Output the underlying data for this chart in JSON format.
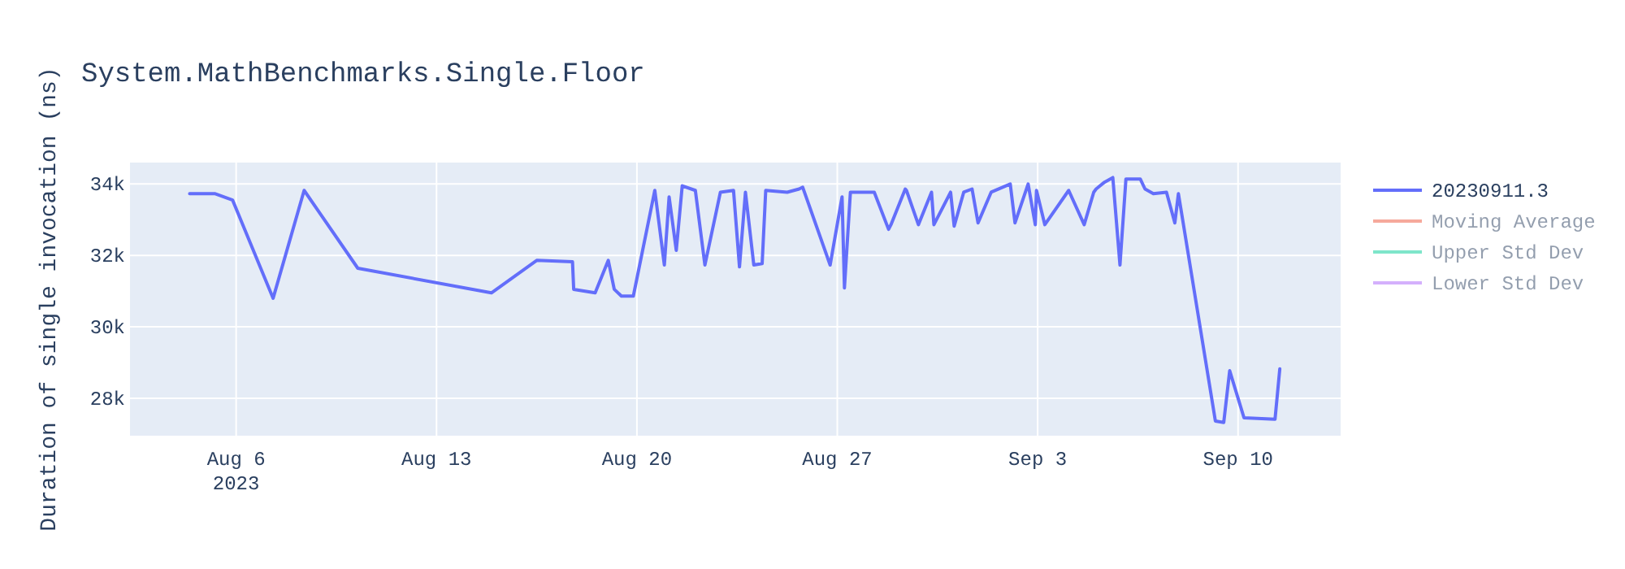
{
  "chart_data": {
    "type": "line",
    "title": "System.MathBenchmarks.Single.Floor",
    "ylabel": "Duration of single invocation (ns)",
    "x": [
      "2023-08-04T09:00",
      "2023-08-05T06:00",
      "2023-08-05T21:00",
      "2023-08-07T07:00",
      "2023-08-08T09:00",
      "2023-08-10T06:00",
      "2023-08-14T22:00",
      "2023-08-16T12:00",
      "2023-08-17T18:00",
      "2023-08-17T19:00",
      "2023-08-18T13:00",
      "2023-08-19T00:00",
      "2023-08-19T05:00",
      "2023-08-19T11:00",
      "2023-08-19T21:00",
      "2023-08-20T15:00",
      "2023-08-20T23:00",
      "2023-08-21T03:00",
      "2023-08-21T09:00",
      "2023-08-21T14:00",
      "2023-08-22T01:00",
      "2023-08-22T09:00",
      "2023-08-22T22:00",
      "2023-08-23T09:00",
      "2023-08-23T14:00",
      "2023-08-23T19:00",
      "2023-08-24T02:00",
      "2023-08-24T09:00",
      "2023-08-24T12:00",
      "2023-08-25T06:00",
      "2023-08-25T16:00",
      "2023-08-25T19:00",
      "2023-08-26T18:00",
      "2023-08-27T04:00",
      "2023-08-27T06:00",
      "2023-08-27T11:00",
      "2023-08-28T07:00",
      "2023-08-28T19:00",
      "2023-08-28T21:00",
      "2023-08-29T09:00",
      "2023-08-29T10:00",
      "2023-08-29T20:00",
      "2023-08-30T07:00",
      "2023-08-30T09:00",
      "2023-08-30T23:00",
      "2023-08-31T02:00",
      "2023-08-31T10:00",
      "2023-08-31T17:00",
      "2023-08-31T22:00",
      "2023-09-01T09:00",
      "2023-09-02T01:00",
      "2023-09-02T05:00",
      "2023-09-02T16:00",
      "2023-09-02T22:00",
      "2023-09-02T23:00",
      "2023-09-03T06:00",
      "2023-09-04T02:00",
      "2023-09-04T15:00",
      "2023-09-04T23:00",
      "2023-09-05T01:00",
      "2023-09-05T08:00",
      "2023-09-05T15:00",
      "2023-09-05T21:00",
      "2023-09-06T02:00",
      "2023-09-06T14:00",
      "2023-09-06T18:00",
      "2023-09-07T01:00",
      "2023-09-07T12:00",
      "2023-09-07T19:00",
      "2023-09-07T22:00",
      "2023-09-09T05:00",
      "2023-09-09T12:00",
      "2023-09-09T17:00",
      "2023-09-10T05:00",
      "2023-09-11T07:00",
      "2023-09-11T11:00"
    ],
    "series": [
      {
        "name": "20230911.3",
        "color": "#636efa",
        "values": [
          33730,
          33730,
          33550,
          30800,
          33820,
          31640,
          30950,
          31860,
          31820,
          31050,
          30950,
          31860,
          31050,
          30860,
          30860,
          33820,
          31730,
          33640,
          32140,
          33950,
          33820,
          31730,
          33770,
          33820,
          31680,
          33770,
          31730,
          31770,
          33820,
          33770,
          33860,
          33910,
          31730,
          33640,
          31090,
          33770,
          33770,
          32730,
          32860,
          33860,
          33820,
          32860,
          33770,
          32860,
          33770,
          32820,
          33770,
          33860,
          32910,
          33770,
          34000,
          32910,
          34000,
          32860,
          33820,
          32860,
          33820,
          32860,
          33770,
          33860,
          34050,
          34180,
          31730,
          34140,
          34140,
          33860,
          33730,
          33770,
          32910,
          33730,
          27360,
          27320,
          28770,
          27450,
          27410,
          28820
        ]
      },
      {
        "name": "Moving Average",
        "color": "#ef553b",
        "values": [
          null,
          null,
          null,
          null,
          null,
          null,
          null,
          null,
          null,
          null,
          null,
          null,
          null,
          null,
          null,
          null,
          null,
          null,
          null,
          null,
          null,
          null,
          null,
          null,
          null,
          null,
          null,
          null,
          null,
          null,
          null,
          null,
          null,
          null,
          null,
          null,
          null,
          null,
          null,
          null,
          null,
          null,
          null,
          null,
          null,
          null,
          null,
          null,
          null,
          null,
          null,
          null,
          null,
          null,
          null,
          null,
          null,
          null,
          null,
          null,
          null,
          null,
          null,
          null,
          null,
          null,
          null,
          null,
          null,
          null,
          null,
          null,
          null,
          null,
          null,
          null
        ]
      },
      {
        "name": "Upper Std Dev",
        "color": "#00cc96",
        "values": [
          null,
          null,
          null,
          null,
          null,
          null,
          null,
          null,
          null,
          null,
          null,
          null,
          null,
          null,
          null,
          null,
          null,
          null,
          null,
          null,
          null,
          null,
          null,
          null,
          null,
          null,
          null,
          null,
          null,
          null,
          null,
          null,
          null,
          null,
          null,
          null,
          null,
          null,
          null,
          null,
          null,
          null,
          null,
          null,
          null,
          null,
          null,
          null,
          null,
          null,
          null,
          null,
          null,
          null,
          null,
          null,
          null,
          null,
          null,
          null,
          null,
          null,
          null,
          null,
          null,
          null,
          null,
          null,
          null,
          null,
          null,
          null,
          null,
          null,
          null,
          null
        ]
      },
      {
        "name": "Lower Std Dev",
        "color": "#ab63fa",
        "values": [
          null,
          null,
          null,
          null,
          null,
          null,
          null,
          null,
          null,
          null,
          null,
          null,
          null,
          null,
          null,
          null,
          null,
          null,
          null,
          null,
          null,
          null,
          null,
          null,
          null,
          null,
          null,
          null,
          null,
          null,
          null,
          null,
          null,
          null,
          null,
          null,
          null,
          null,
          null,
          null,
          null,
          null,
          null,
          null,
          null,
          null,
          null,
          null,
          null,
          null,
          null,
          null,
          null,
          null,
          null,
          null,
          null,
          null,
          null,
          null,
          null,
          null,
          null,
          null,
          null,
          null,
          null,
          null,
          null,
          null,
          null,
          null,
          null,
          null,
          null,
          null
        ]
      }
    ],
    "xlim": [
      "2023-08-02T07:00",
      "2023-09-13T14:00"
    ],
    "xticks": [
      {
        "value": "2023-08-06",
        "label": "Aug 6\n2023"
      },
      {
        "value": "2023-08-13",
        "label": "Aug 13"
      },
      {
        "value": "2023-08-20",
        "label": "Aug 20"
      },
      {
        "value": "2023-08-27",
        "label": "Aug 27"
      },
      {
        "value": "2023-09-03",
        "label": "Sep 3"
      },
      {
        "value": "2023-09-10",
        "label": "Sep 10"
      }
    ],
    "ylim": [
      26950,
      34600
    ],
    "yticks": [
      {
        "value": 28000,
        "label": "28k"
      },
      {
        "value": 30000,
        "label": "30k"
      },
      {
        "value": 32000,
        "label": "32k"
      },
      {
        "value": 34000,
        "label": "34k"
      }
    ],
    "grid": true,
    "legend": "right",
    "marker": "none",
    "line_style": "solid"
  }
}
